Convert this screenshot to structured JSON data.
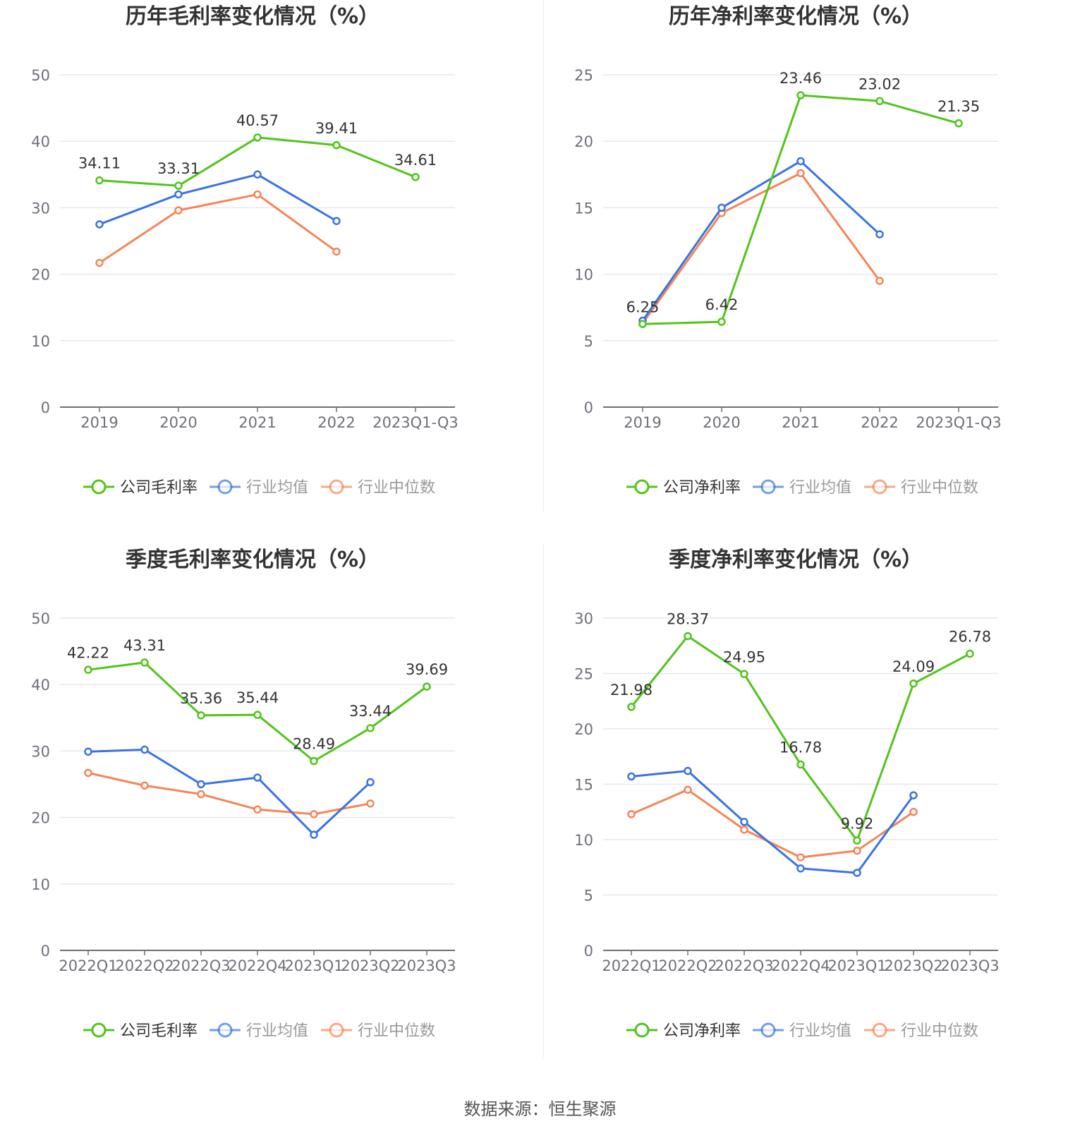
{
  "colors": {
    "company": "#52c41a",
    "industry_avg": "#3b73e0",
    "industry_median": "#f5855a",
    "grid": "#e6e8f2",
    "axis": "#6e7079"
  },
  "footer": {
    "source": "数据来源：恒生聚源"
  },
  "chart_data": [
    {
      "type": "line",
      "title": "历年毛利率变化情况（%）",
      "categories": [
        "2019",
        "2020",
        "2021",
        "2022",
        "2023Q1-Q3"
      ],
      "ylim": [
        0,
        50
      ],
      "yticks": [
        0,
        10,
        20,
        30,
        40,
        50
      ],
      "grid": true,
      "legend_position": "bottom",
      "series": [
        {
          "name": "公司毛利率",
          "color_key": "company",
          "values": [
            34.11,
            33.31,
            40.57,
            39.41,
            34.61
          ],
          "labels": [
            "34.11",
            "33.31",
            "40.57",
            "39.41",
            "34.61"
          ]
        },
        {
          "name": "行业均值",
          "color_key": "industry_avg",
          "values": [
            27.5,
            32.0,
            35.0,
            28.0,
            null
          ]
        },
        {
          "name": "行业中位数",
          "color_key": "industry_median",
          "values": [
            21.7,
            29.6,
            32.0,
            23.4,
            null
          ]
        }
      ]
    },
    {
      "type": "line",
      "title": "历年净利率变化情况（%）",
      "categories": [
        "2019",
        "2020",
        "2021",
        "2022",
        "2023Q1-Q3"
      ],
      "ylim": [
        0,
        25
      ],
      "yticks": [
        0,
        5,
        10,
        15,
        20,
        25
      ],
      "grid": true,
      "legend_position": "bottom",
      "series": [
        {
          "name": "公司净利率",
          "color_key": "company",
          "values": [
            6.25,
            6.42,
            23.46,
            23.02,
            21.35
          ],
          "labels": [
            "6.25",
            "6.42",
            "23.46",
            "23.02",
            "21.35"
          ]
        },
        {
          "name": "行业均值",
          "color_key": "industry_avg",
          "values": [
            6.5,
            15.0,
            18.5,
            13.0,
            null
          ]
        },
        {
          "name": "行业中位数",
          "color_key": "industry_median",
          "values": [
            6.3,
            14.6,
            17.6,
            9.5,
            null
          ]
        }
      ]
    },
    {
      "type": "line",
      "title": "季度毛利率变化情况（%）",
      "categories": [
        "2022Q1",
        "2022Q2",
        "2022Q3",
        "2022Q4",
        "2023Q1",
        "2023Q2",
        "2023Q3"
      ],
      "ylim": [
        0,
        50
      ],
      "yticks": [
        0,
        10,
        20,
        30,
        40,
        50
      ],
      "grid": true,
      "legend_position": "bottom",
      "series": [
        {
          "name": "公司毛利率",
          "color_key": "company",
          "values": [
            42.22,
            43.31,
            35.36,
            35.44,
            28.49,
            33.44,
            39.69
          ],
          "labels": [
            "42.22",
            "43.31",
            "35.36",
            "35.44",
            "28.49",
            "33.44",
            "39.69"
          ]
        },
        {
          "name": "行业均值",
          "color_key": "industry_avg",
          "values": [
            29.9,
            30.2,
            25.0,
            26.0,
            17.4,
            25.3,
            null
          ]
        },
        {
          "name": "行业中位数",
          "color_key": "industry_median",
          "values": [
            26.7,
            24.8,
            23.5,
            21.2,
            20.5,
            22.1,
            null
          ]
        }
      ]
    },
    {
      "type": "line",
      "title": "季度净利率变化情况（%）",
      "categories": [
        "2022Q1",
        "2022Q2",
        "2022Q3",
        "2022Q4",
        "2023Q1",
        "2023Q2",
        "2023Q3"
      ],
      "ylim": [
        0,
        30
      ],
      "yticks": [
        0,
        5,
        10,
        15,
        20,
        25,
        30
      ],
      "grid": true,
      "legend_position": "bottom",
      "series": [
        {
          "name": "公司净利率",
          "color_key": "company",
          "values": [
            21.98,
            28.37,
            24.95,
            16.78,
            9.92,
            24.09,
            26.78
          ],
          "labels": [
            "21.98",
            "28.37",
            "24.95",
            "16.78",
            "9.92",
            "24.09",
            "26.78"
          ]
        },
        {
          "name": "行业均值",
          "color_key": "industry_avg",
          "values": [
            15.7,
            16.2,
            11.6,
            7.4,
            7.0,
            14.0,
            null
          ]
        },
        {
          "name": "行业中位数",
          "color_key": "industry_median",
          "values": [
            12.3,
            14.5,
            10.9,
            8.4,
            9.0,
            12.5,
            null
          ]
        }
      ]
    }
  ]
}
